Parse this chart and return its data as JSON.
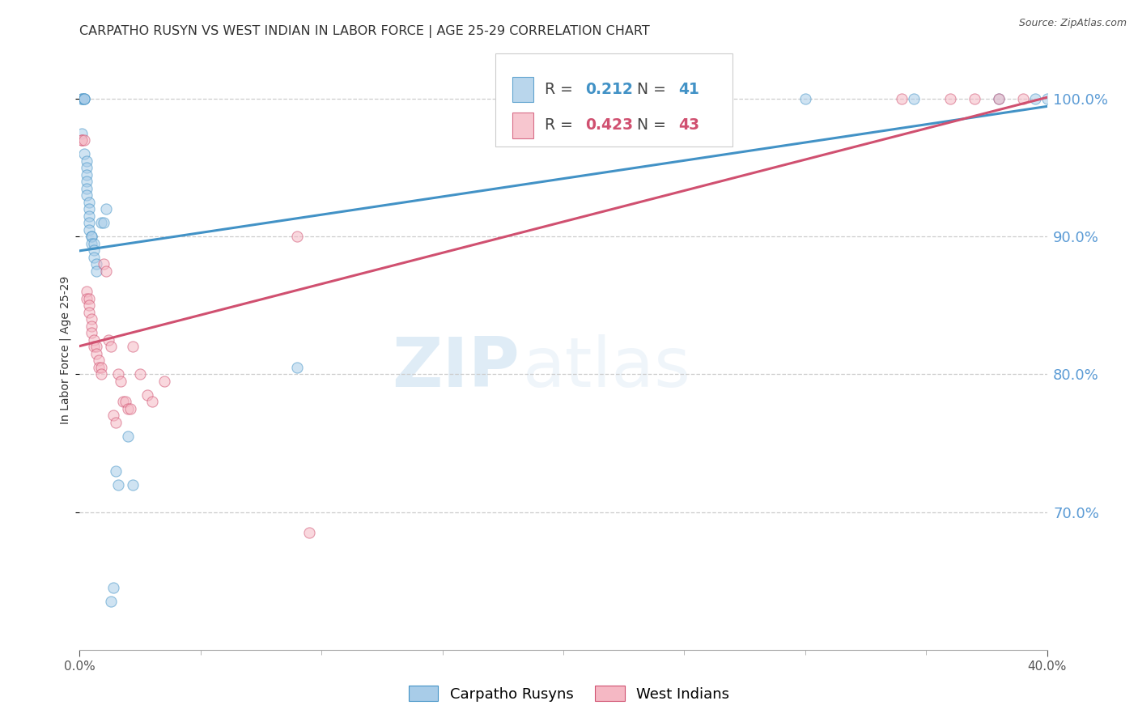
{
  "title": "CARPATHO RUSYN VS WEST INDIAN IN LABOR FORCE | AGE 25-29 CORRELATION CHART",
  "source": "Source: ZipAtlas.com",
  "ylabel": "In Labor Force | Age 25-29",
  "xlim": [
    0.0,
    0.4
  ],
  "ylim": [
    0.6,
    1.035
  ],
  "yticks": [
    0.7,
    0.8,
    0.9,
    1.0
  ],
  "xticks": [
    0.0,
    0.4
  ],
  "blue_color": "#a8cce8",
  "blue_color_line": "#4292c6",
  "pink_color": "#f5b8c4",
  "pink_color_line": "#d05070",
  "axis_color": "#5b9bd5",
  "background_color": "#ffffff",
  "watermark_zip": "ZIP",
  "watermark_atlas": "atlas",
  "legend_blue_r_val": "0.212",
  "legend_blue_n_val": "41",
  "legend_pink_r_val": "0.423",
  "legend_pink_n_val": "43",
  "title_fontsize": 11.5,
  "label_fontsize": 10,
  "tick_fontsize": 11,
  "source_fontsize": 9,
  "marker_size": 90,
  "marker_alpha": 0.55,
  "line_width": 2.2,
  "blue_x": [
    0.001,
    0.001,
    0.001,
    0.002,
    0.002,
    0.002,
    0.002,
    0.003,
    0.003,
    0.003,
    0.003,
    0.003,
    0.003,
    0.004,
    0.004,
    0.004,
    0.004,
    0.004,
    0.005,
    0.005,
    0.005,
    0.006,
    0.006,
    0.006,
    0.007,
    0.007,
    0.009,
    0.01,
    0.011,
    0.013,
    0.014,
    0.015,
    0.016,
    0.02,
    0.022,
    0.09,
    0.3,
    0.345,
    0.38,
    0.395,
    0.4
  ],
  "blue_y": [
    1.0,
    1.0,
    0.975,
    1.0,
    1.0,
    1.0,
    0.96,
    0.955,
    0.95,
    0.945,
    0.94,
    0.935,
    0.93,
    0.925,
    0.92,
    0.915,
    0.91,
    0.905,
    0.9,
    0.9,
    0.895,
    0.895,
    0.89,
    0.885,
    0.88,
    0.875,
    0.91,
    0.91,
    0.92,
    0.635,
    0.645,
    0.73,
    0.72,
    0.755,
    0.72,
    0.805,
    1.0,
    1.0,
    1.0,
    1.0,
    1.0
  ],
  "pink_x": [
    0.001,
    0.001,
    0.002,
    0.003,
    0.003,
    0.004,
    0.004,
    0.004,
    0.005,
    0.005,
    0.005,
    0.006,
    0.006,
    0.007,
    0.007,
    0.008,
    0.008,
    0.009,
    0.009,
    0.01,
    0.011,
    0.012,
    0.013,
    0.014,
    0.015,
    0.016,
    0.017,
    0.018,
    0.019,
    0.02,
    0.021,
    0.022,
    0.025,
    0.028,
    0.03,
    0.035,
    0.09,
    0.095,
    0.34,
    0.36,
    0.37,
    0.38,
    0.39
  ],
  "pink_y": [
    0.97,
    0.97,
    0.97,
    0.86,
    0.855,
    0.855,
    0.85,
    0.845,
    0.84,
    0.835,
    0.83,
    0.825,
    0.82,
    0.82,
    0.815,
    0.81,
    0.805,
    0.805,
    0.8,
    0.88,
    0.875,
    0.825,
    0.82,
    0.77,
    0.765,
    0.8,
    0.795,
    0.78,
    0.78,
    0.775,
    0.775,
    0.82,
    0.8,
    0.785,
    0.78,
    0.795,
    0.9,
    0.685,
    1.0,
    1.0,
    1.0,
    1.0,
    1.0
  ]
}
